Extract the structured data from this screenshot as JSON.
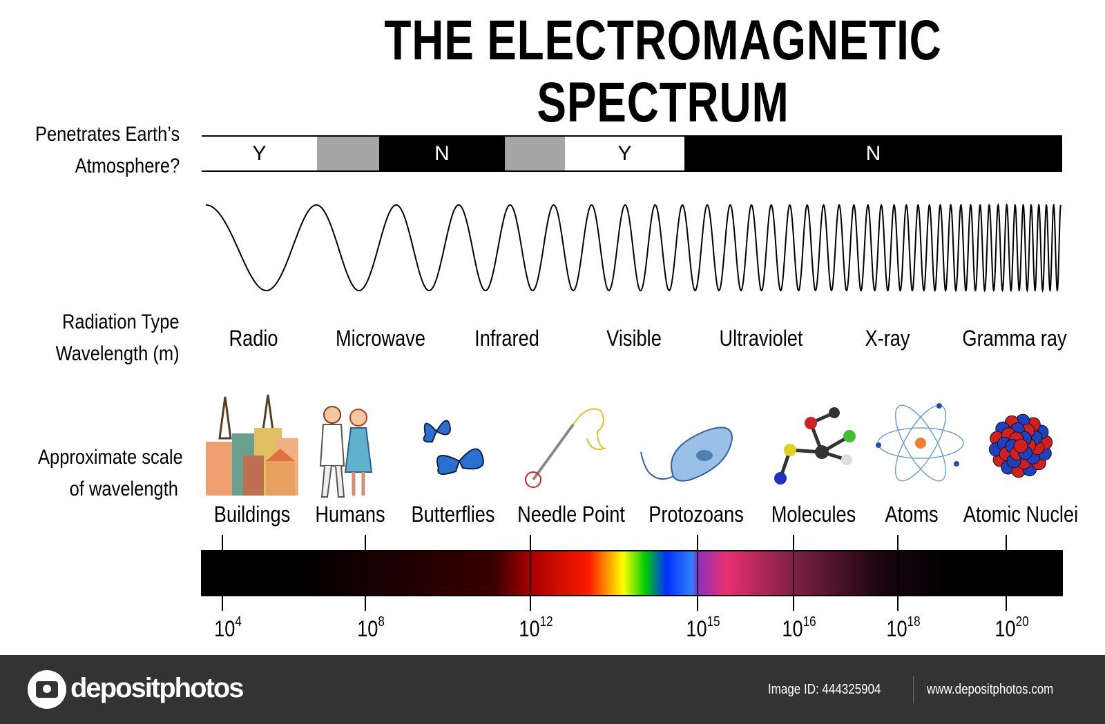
{
  "title": "THE ELECTROMAGNETIC SPECTRUM",
  "rows": {
    "atmosphere_label": [
      "Penetrates Earth’s",
      "Atmosphere?"
    ],
    "radiation_label": [
      "Radiation Type",
      "Wavelength (m)"
    ],
    "scale_label": [
      "Approximate scale",
      "of wavelength"
    ]
  },
  "atmosphere_segments": [
    {
      "label": "Y",
      "color": "#ffffff"
    },
    {
      "label": "",
      "color": "#a6a6a6"
    },
    {
      "label": "N",
      "color": "#000000"
    },
    {
      "label": "",
      "color": "#a6a6a6"
    },
    {
      "label": "Y",
      "color": "#ffffff"
    },
    {
      "label": "N",
      "color": "#000000"
    }
  ],
  "radiation_types": [
    "Radio",
    "Microwave",
    "Infrared",
    "Visible",
    "Ultraviolet",
    "X-ray",
    "Gramma ray"
  ],
  "scale_objects": [
    {
      "label": "Buildings",
      "icon": "buildings-icon"
    },
    {
      "label": "Humans",
      "icon": "humans-icon"
    },
    {
      "label": "Butterflies",
      "icon": "butterflies-icon"
    },
    {
      "label": "Needle Point",
      "icon": "needle-icon"
    },
    {
      "label": "Protozoans",
      "icon": "protozoan-icon"
    },
    {
      "label": "Molecules",
      "icon": "molecule-icon"
    },
    {
      "label": "Atoms",
      "icon": "atom-icon"
    },
    {
      "label": "Atomic Nuclei",
      "icon": "nucleus-icon"
    }
  ],
  "scale_ticks": [
    {
      "base": "10",
      "exp": "4"
    },
    {
      "base": "10",
      "exp": "8"
    },
    {
      "base": "10",
      "exp": "12"
    },
    {
      "base": "10",
      "exp": "15"
    },
    {
      "base": "10",
      "exp": "16"
    },
    {
      "base": "10",
      "exp": "18"
    },
    {
      "base": "10",
      "exp": "20"
    }
  ],
  "footer": {
    "logo_text": "depositphotos",
    "image_id": "Image ID: 444325904",
    "url": "www.depositphotos.com",
    "background": "#333333"
  }
}
